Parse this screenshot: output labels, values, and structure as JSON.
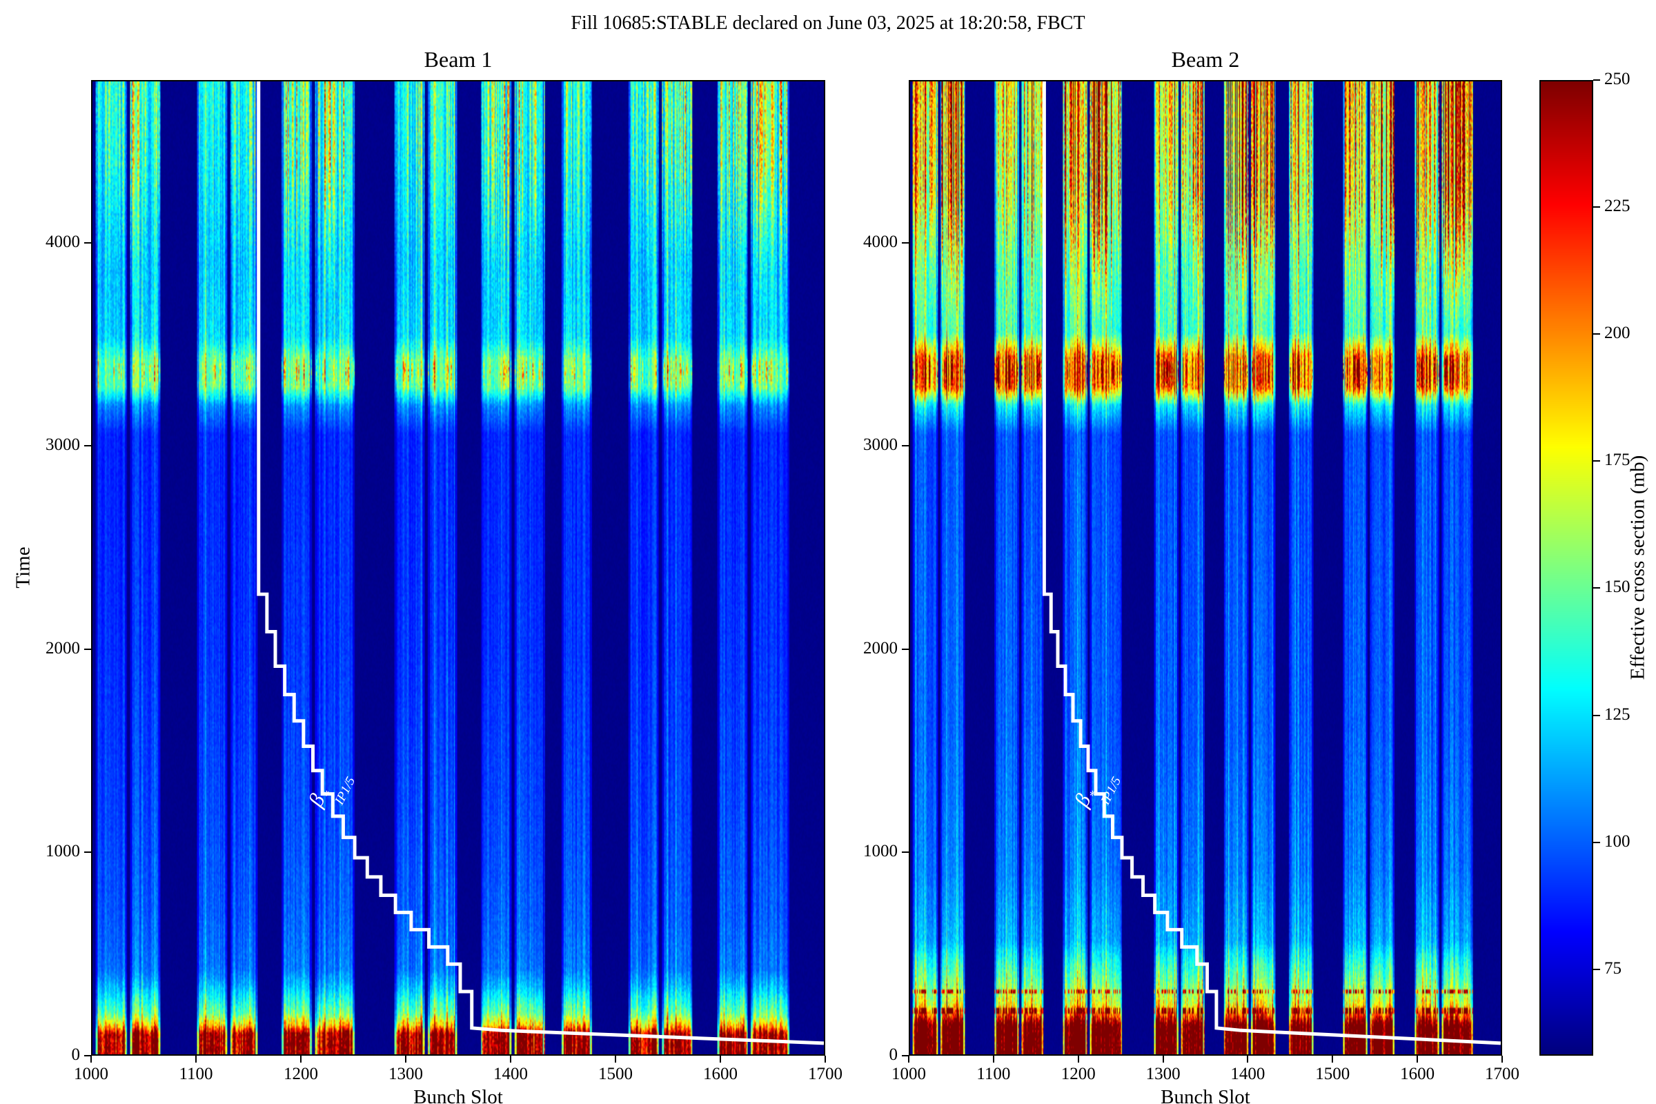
{
  "figure": {
    "suptitle": "Fill 10685:STABLE declared on June 03, 2025 at 18:20:58, FBCT"
  },
  "chart_data": {
    "type": "heatmap",
    "suptitle": "Fill 10685:STABLE declared on June 03, 2025 at 18:20:58, FBCT",
    "xlabel": "Bunch Slot",
    "ylabel": "Time",
    "xlim": [
      1000,
      1700
    ],
    "ylim": [
      0,
      4800
    ],
    "x_ticks": [
      1000,
      1100,
      1200,
      1300,
      1400,
      1500,
      1600,
      1700
    ],
    "y_ticks": [
      0,
      1000,
      2000,
      3000,
      4000
    ],
    "colormap": "jet",
    "grid": false,
    "legend": "none",
    "colorbar": {
      "label": "Effective cross section (mb)",
      "ticks": [
        75,
        100,
        125,
        150,
        175,
        200,
        225,
        250
      ],
      "vmin": 58,
      "vmax": 250
    },
    "beta_label": {
      "base": "β",
      "sup": "*",
      "sub": "IP1/5"
    },
    "trains": [
      [
        1003,
        1032,
        0.5
      ],
      [
        1036,
        1064,
        0.9
      ],
      [
        1100,
        1128,
        0.3
      ],
      [
        1132,
        1157,
        0.5
      ],
      [
        1181,
        1209,
        0.8
      ],
      [
        1213,
        1250,
        1.0
      ],
      [
        1289,
        1317,
        0.4
      ],
      [
        1321,
        1348,
        0.5
      ],
      [
        1372,
        1400,
        0.9
      ],
      [
        1404,
        1432,
        0.8
      ],
      [
        1449,
        1477,
        0.5
      ],
      [
        1513,
        1541,
        0.6
      ],
      [
        1545,
        1573,
        0.9
      ],
      [
        1598,
        1626,
        0.8
      ],
      [
        1630,
        1666,
        1.0
      ]
    ],
    "beta_line": {
      "points": [
        [
          1159,
          4800
        ],
        [
          1159,
          2270
        ],
        [
          1167,
          2270
        ],
        [
          1167,
          2085
        ],
        [
          1175,
          2085
        ],
        [
          1175,
          1915
        ],
        [
          1184,
          1915
        ],
        [
          1184,
          1775
        ],
        [
          1193,
          1775
        ],
        [
          1193,
          1645
        ],
        [
          1202,
          1645
        ],
        [
          1202,
          1520
        ],
        [
          1211,
          1520
        ],
        [
          1211,
          1400
        ],
        [
          1220,
          1400
        ],
        [
          1220,
          1285
        ],
        [
          1230,
          1285
        ],
        [
          1230,
          1175
        ],
        [
          1240,
          1175
        ],
        [
          1240,
          1070
        ],
        [
          1251,
          1070
        ],
        [
          1251,
          970
        ],
        [
          1263,
          970
        ],
        [
          1263,
          875
        ],
        [
          1276,
          875
        ],
        [
          1276,
          785
        ],
        [
          1290,
          785
        ],
        [
          1290,
          700
        ],
        [
          1305,
          700
        ],
        [
          1305,
          615
        ],
        [
          1322,
          615
        ],
        [
          1322,
          530
        ],
        [
          1340,
          530
        ],
        [
          1340,
          445
        ],
        [
          1352,
          445
        ],
        [
          1352,
          310
        ],
        [
          1363,
          310
        ],
        [
          1363,
          130
        ],
        [
          1392,
          118
        ],
        [
          1700,
          55
        ]
      ]
    },
    "panels": [
      {
        "title": "Beam 1",
        "time_profile": [
          [
            0,
            248
          ],
          [
            100,
            248
          ],
          [
            140,
            190
          ],
          [
            200,
            150
          ],
          [
            260,
            135
          ],
          [
            330,
            118
          ],
          [
            420,
            104
          ],
          [
            700,
            99
          ],
          [
            1200,
            95
          ],
          [
            2000,
            91
          ],
          [
            3060,
            89
          ],
          [
            3200,
            108
          ],
          [
            3290,
            146
          ],
          [
            3430,
            146
          ],
          [
            3540,
            124
          ],
          [
            3900,
            117
          ],
          [
            4400,
            121
          ],
          [
            4800,
            126
          ]
        ],
        "spike_thresh": 0.72,
        "spike_amp": 40,
        "spike_t": 3370,
        "spike_sigma": 70,
        "top_start": 3600,
        "top_ramp": 800,
        "top_amp": 80,
        "dot_rows": []
      },
      {
        "title": "Beam 2",
        "time_profile": [
          [
            0,
            278
          ],
          [
            140,
            278
          ],
          [
            190,
            215
          ],
          [
            250,
            172
          ],
          [
            350,
            152
          ],
          [
            470,
            132
          ],
          [
            560,
            115
          ],
          [
            900,
            105
          ],
          [
            1600,
            99
          ],
          [
            3060,
            96
          ],
          [
            3200,
            126
          ],
          [
            3290,
            195
          ],
          [
            3440,
            195
          ],
          [
            3560,
            142
          ],
          [
            3900,
            138
          ],
          [
            4400,
            148
          ],
          [
            4800,
            156
          ]
        ],
        "spike_thresh": 0.68,
        "spike_amp": 85,
        "spike_t": 3370,
        "spike_sigma": 75,
        "top_start": 3550,
        "top_ramp": 700,
        "top_amp": 165,
        "dot_rows": [
          215,
          310
        ]
      }
    ]
  }
}
